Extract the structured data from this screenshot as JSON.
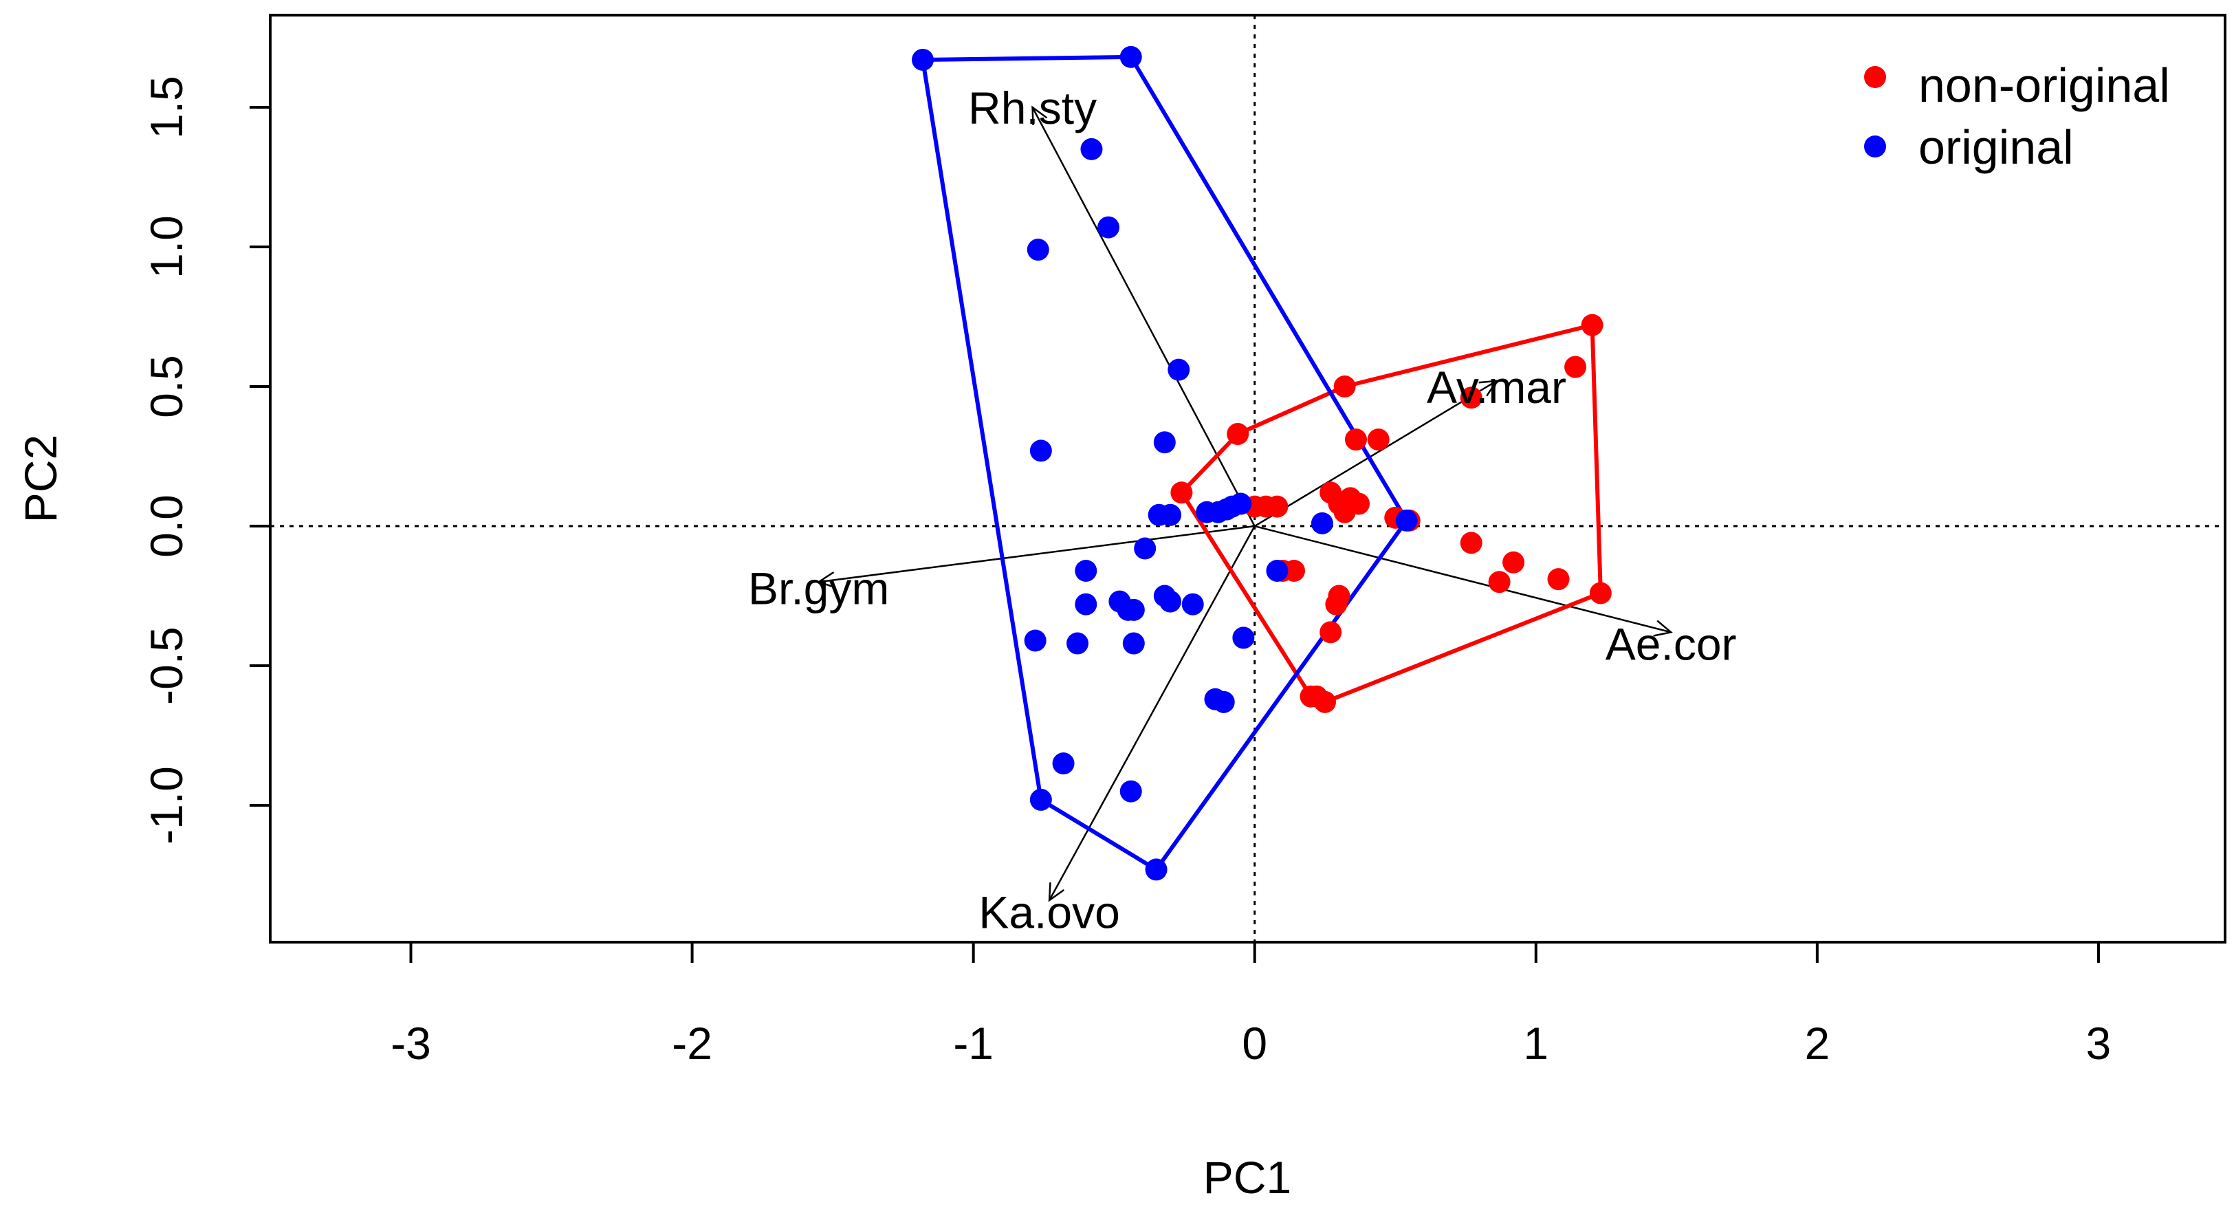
{
  "chart_data": {
    "type": "scatter",
    "xlabel": "PC1",
    "ylabel": "PC2",
    "xlim": [
      -3.5,
      3.45
    ],
    "ylim": [
      -1.49,
      1.83
    ],
    "xticks": [
      -3,
      -2,
      -1,
      0,
      1,
      2,
      3
    ],
    "yticks": [
      -1.0,
      -0.5,
      0.0,
      0.5,
      1.0,
      1.5
    ],
    "ytick_labels": [
      "-1.0",
      "-0.5",
      "0.0",
      "0.5",
      "1.0",
      "1.5"
    ],
    "reference_lines": {
      "x": 0,
      "y": 0,
      "style": "dotted"
    },
    "legend": {
      "position": "top-right",
      "entries": [
        {
          "label": "non-original",
          "color": "#ff0000"
        },
        {
          "label": "original",
          "color": "#0000ff"
        }
      ]
    },
    "series": [
      {
        "name": "non-original",
        "color": "#ff0000",
        "points": [
          [
            1.2,
            0.72
          ],
          [
            1.14,
            0.57
          ],
          [
            0.77,
            0.46
          ],
          [
            0.32,
            0.5
          ],
          [
            0.36,
            0.31
          ],
          [
            0.44,
            0.31
          ],
          [
            -0.06,
            0.33
          ],
          [
            -0.26,
            0.12
          ],
          [
            0.0,
            0.07
          ],
          [
            0.04,
            0.07
          ],
          [
            0.08,
            0.07
          ],
          [
            0.27,
            0.12
          ],
          [
            0.34,
            0.1
          ],
          [
            0.3,
            0.08
          ],
          [
            0.37,
            0.08
          ],
          [
            0.32,
            0.05
          ],
          [
            0.5,
            0.03
          ],
          [
            0.55,
            0.02
          ],
          [
            0.77,
            -0.06
          ],
          [
            0.92,
            -0.13
          ],
          [
            0.87,
            -0.2
          ],
          [
            1.08,
            -0.19
          ],
          [
            1.23,
            -0.24
          ],
          [
            0.1,
            -0.16
          ],
          [
            0.14,
            -0.16
          ],
          [
            0.3,
            -0.25
          ],
          [
            0.29,
            -0.28
          ],
          [
            0.27,
            -0.38
          ],
          [
            0.2,
            -0.61
          ],
          [
            0.25,
            -0.63
          ],
          [
            0.22,
            -0.61
          ]
        ],
        "hull": [
          [
            1.2,
            0.72
          ],
          [
            1.23,
            -0.24
          ],
          [
            0.25,
            -0.63
          ],
          [
            0.2,
            -0.61
          ],
          [
            -0.26,
            0.12
          ],
          [
            -0.06,
            0.33
          ],
          [
            0.32,
            0.5
          ]
        ]
      },
      {
        "name": "original",
        "color": "#0000ff",
        "points": [
          [
            -1.18,
            1.67
          ],
          [
            -0.44,
            1.68
          ],
          [
            -0.58,
            1.35
          ],
          [
            -0.52,
            1.07
          ],
          [
            -0.77,
            0.99
          ],
          [
            -0.27,
            0.56
          ],
          [
            -0.76,
            0.27
          ],
          [
            -0.32,
            0.3
          ],
          [
            -0.34,
            0.04
          ],
          [
            -0.3,
            0.04
          ],
          [
            -0.17,
            0.05
          ],
          [
            -0.13,
            0.05
          ],
          [
            -0.1,
            0.06
          ],
          [
            -0.08,
            0.07
          ],
          [
            -0.05,
            0.08
          ],
          [
            0.24,
            0.01
          ],
          [
            0.54,
            0.02
          ],
          [
            -0.39,
            -0.08
          ],
          [
            -0.6,
            -0.16
          ],
          [
            -0.6,
            -0.28
          ],
          [
            -0.48,
            -0.27
          ],
          [
            -0.45,
            -0.3
          ],
          [
            -0.43,
            -0.3
          ],
          [
            -0.32,
            -0.25
          ],
          [
            -0.3,
            -0.27
          ],
          [
            -0.22,
            -0.28
          ],
          [
            0.08,
            -0.16
          ],
          [
            -0.78,
            -0.41
          ],
          [
            -0.63,
            -0.42
          ],
          [
            -0.43,
            -0.42
          ],
          [
            -0.04,
            -0.4
          ],
          [
            -0.14,
            -0.62
          ],
          [
            -0.11,
            -0.63
          ],
          [
            -0.68,
            -0.85
          ],
          [
            -0.44,
            -0.95
          ],
          [
            -0.76,
            -0.98
          ],
          [
            -0.35,
            -1.23
          ]
        ],
        "hull": [
          [
            -1.18,
            1.67
          ],
          [
            -0.44,
            1.68
          ],
          [
            0.54,
            0.02
          ],
          [
            -0.35,
            -1.23
          ],
          [
            -0.76,
            -0.98
          ]
        ]
      }
    ],
    "loadings": [
      {
        "label": "Rh.sty",
        "tip": [
          -0.79,
          1.5
        ],
        "label_at": [
          -0.79,
          1.5
        ]
      },
      {
        "label": "Av.mar",
        "tip": [
          0.86,
          0.52
        ],
        "label_at": [
          0.86,
          0.5
        ]
      },
      {
        "label": "Br.gym",
        "tip": [
          -1.55,
          -0.2
        ],
        "label_at": [
          -1.55,
          -0.22
        ]
      },
      {
        "label": "Ae.cor",
        "tip": [
          1.48,
          -0.38
        ],
        "label_at": [
          1.48,
          -0.42
        ]
      },
      {
        "label": "Ka.ovo",
        "tip": [
          -0.73,
          -1.34
        ],
        "label_at": [
          -0.73,
          -1.38
        ]
      }
    ]
  }
}
